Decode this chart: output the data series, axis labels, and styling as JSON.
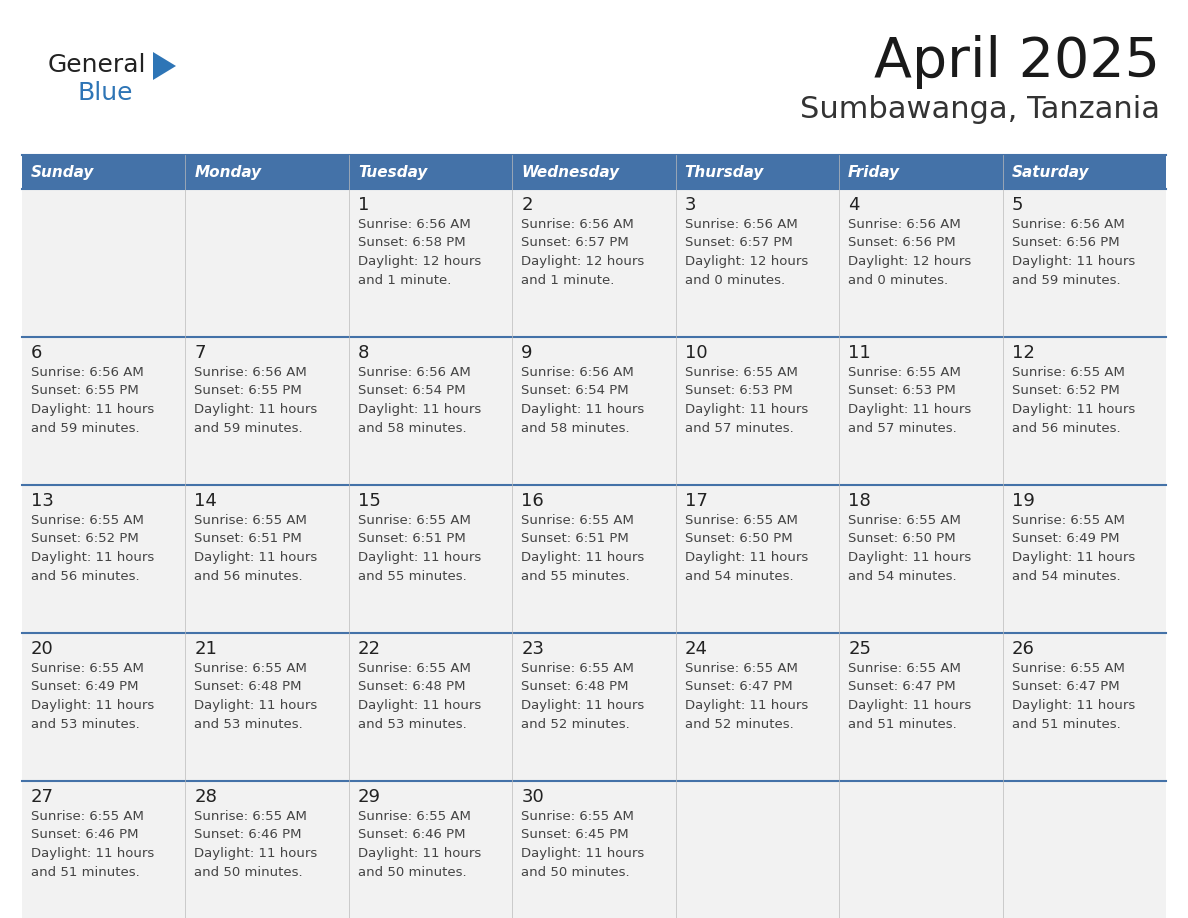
{
  "title": "April 2025",
  "subtitle": "Sumbawanga, Tanzania",
  "header_bg": "#4472a8",
  "header_text_color": "#ffffff",
  "day_names": [
    "Sunday",
    "Monday",
    "Tuesday",
    "Wednesday",
    "Thursday",
    "Friday",
    "Saturday"
  ],
  "row_bg": "#f2f2f2",
  "separator_color": "#4472a8",
  "day_num_color": "#222222",
  "info_color": "#444444",
  "title_color": "#1a1a1a",
  "subtitle_color": "#333333",
  "logo_blue": "#2e75b6",
  "logo_text_color": "#222222",
  "days": [
    {
      "date": 1,
      "col": 2,
      "row": 0,
      "sunrise": "6:56 AM",
      "sunset": "6:58 PM",
      "daylight": "12 hours and 1 minute."
    },
    {
      "date": 2,
      "col": 3,
      "row": 0,
      "sunrise": "6:56 AM",
      "sunset": "6:57 PM",
      "daylight": "12 hours and 1 minute."
    },
    {
      "date": 3,
      "col": 4,
      "row": 0,
      "sunrise": "6:56 AM",
      "sunset": "6:57 PM",
      "daylight": "12 hours and 0 minutes."
    },
    {
      "date": 4,
      "col": 5,
      "row": 0,
      "sunrise": "6:56 AM",
      "sunset": "6:56 PM",
      "daylight": "12 hours and 0 minutes."
    },
    {
      "date": 5,
      "col": 6,
      "row": 0,
      "sunrise": "6:56 AM",
      "sunset": "6:56 PM",
      "daylight": "11 hours and 59 minutes."
    },
    {
      "date": 6,
      "col": 0,
      "row": 1,
      "sunrise": "6:56 AM",
      "sunset": "6:55 PM",
      "daylight": "11 hours and 59 minutes."
    },
    {
      "date": 7,
      "col": 1,
      "row": 1,
      "sunrise": "6:56 AM",
      "sunset": "6:55 PM",
      "daylight": "11 hours and 59 minutes."
    },
    {
      "date": 8,
      "col": 2,
      "row": 1,
      "sunrise": "6:56 AM",
      "sunset": "6:54 PM",
      "daylight": "11 hours and 58 minutes."
    },
    {
      "date": 9,
      "col": 3,
      "row": 1,
      "sunrise": "6:56 AM",
      "sunset": "6:54 PM",
      "daylight": "11 hours and 58 minutes."
    },
    {
      "date": 10,
      "col": 4,
      "row": 1,
      "sunrise": "6:55 AM",
      "sunset": "6:53 PM",
      "daylight": "11 hours and 57 minutes."
    },
    {
      "date": 11,
      "col": 5,
      "row": 1,
      "sunrise": "6:55 AM",
      "sunset": "6:53 PM",
      "daylight": "11 hours and 57 minutes."
    },
    {
      "date": 12,
      "col": 6,
      "row": 1,
      "sunrise": "6:55 AM",
      "sunset": "6:52 PM",
      "daylight": "11 hours and 56 minutes."
    },
    {
      "date": 13,
      "col": 0,
      "row": 2,
      "sunrise": "6:55 AM",
      "sunset": "6:52 PM",
      "daylight": "11 hours and 56 minutes."
    },
    {
      "date": 14,
      "col": 1,
      "row": 2,
      "sunrise": "6:55 AM",
      "sunset": "6:51 PM",
      "daylight": "11 hours and 56 minutes."
    },
    {
      "date": 15,
      "col": 2,
      "row": 2,
      "sunrise": "6:55 AM",
      "sunset": "6:51 PM",
      "daylight": "11 hours and 55 minutes."
    },
    {
      "date": 16,
      "col": 3,
      "row": 2,
      "sunrise": "6:55 AM",
      "sunset": "6:51 PM",
      "daylight": "11 hours and 55 minutes."
    },
    {
      "date": 17,
      "col": 4,
      "row": 2,
      "sunrise": "6:55 AM",
      "sunset": "6:50 PM",
      "daylight": "11 hours and 54 minutes."
    },
    {
      "date": 18,
      "col": 5,
      "row": 2,
      "sunrise": "6:55 AM",
      "sunset": "6:50 PM",
      "daylight": "11 hours and 54 minutes."
    },
    {
      "date": 19,
      "col": 6,
      "row": 2,
      "sunrise": "6:55 AM",
      "sunset": "6:49 PM",
      "daylight": "11 hours and 54 minutes."
    },
    {
      "date": 20,
      "col": 0,
      "row": 3,
      "sunrise": "6:55 AM",
      "sunset": "6:49 PM",
      "daylight": "11 hours and 53 minutes."
    },
    {
      "date": 21,
      "col": 1,
      "row": 3,
      "sunrise": "6:55 AM",
      "sunset": "6:48 PM",
      "daylight": "11 hours and 53 minutes."
    },
    {
      "date": 22,
      "col": 2,
      "row": 3,
      "sunrise": "6:55 AM",
      "sunset": "6:48 PM",
      "daylight": "11 hours and 53 minutes."
    },
    {
      "date": 23,
      "col": 3,
      "row": 3,
      "sunrise": "6:55 AM",
      "sunset": "6:48 PM",
      "daylight": "11 hours and 52 minutes."
    },
    {
      "date": 24,
      "col": 4,
      "row": 3,
      "sunrise": "6:55 AM",
      "sunset": "6:47 PM",
      "daylight": "11 hours and 52 minutes."
    },
    {
      "date": 25,
      "col": 5,
      "row": 3,
      "sunrise": "6:55 AM",
      "sunset": "6:47 PM",
      "daylight": "11 hours and 51 minutes."
    },
    {
      "date": 26,
      "col": 6,
      "row": 3,
      "sunrise": "6:55 AM",
      "sunset": "6:47 PM",
      "daylight": "11 hours and 51 minutes."
    },
    {
      "date": 27,
      "col": 0,
      "row": 4,
      "sunrise": "6:55 AM",
      "sunset": "6:46 PM",
      "daylight": "11 hours and 51 minutes."
    },
    {
      "date": 28,
      "col": 1,
      "row": 4,
      "sunrise": "6:55 AM",
      "sunset": "6:46 PM",
      "daylight": "11 hours and 50 minutes."
    },
    {
      "date": 29,
      "col": 2,
      "row": 4,
      "sunrise": "6:55 AM",
      "sunset": "6:46 PM",
      "daylight": "11 hours and 50 minutes."
    },
    {
      "date": 30,
      "col": 3,
      "row": 4,
      "sunrise": "6:55 AM",
      "sunset": "6:45 PM",
      "daylight": "11 hours and 50 minutes."
    }
  ]
}
